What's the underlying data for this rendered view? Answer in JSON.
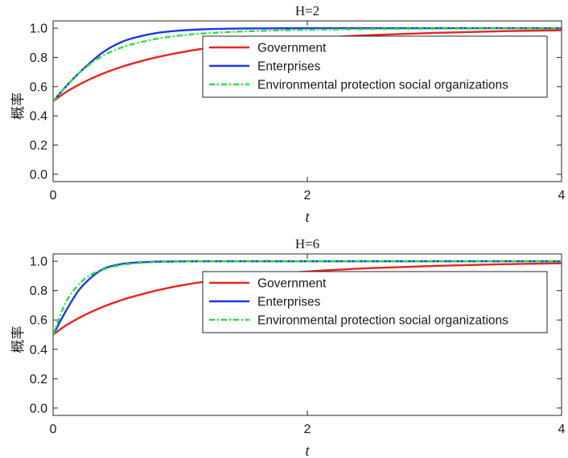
{
  "chart_data": [
    {
      "type": "line",
      "title": "H=2",
      "xlabel": "t",
      "ylabel": "概率",
      "xlim": [
        0,
        4
      ],
      "ylim": [
        -0.05,
        1.05
      ],
      "xticks": [
        "0",
        "2",
        "4"
      ],
      "yticks": [
        "0.0",
        "0.2",
        "0.4",
        "0.6",
        "0.8",
        "1.0"
      ],
      "legend_position": "top-right",
      "series": [
        {
          "name": "Government",
          "color": "#e8231f",
          "style": "solid",
          "x": [
            0,
            0.1,
            0.2,
            0.3,
            0.4,
            0.5,
            0.6,
            0.8,
            1.0,
            1.2,
            1.5,
            2.0,
            2.5,
            3.0,
            3.5,
            4.0
          ],
          "values": [
            0.5,
            0.562,
            0.612,
            0.655,
            0.692,
            0.724,
            0.752,
            0.798,
            0.834,
            0.862,
            0.895,
            0.93,
            0.953,
            0.968,
            0.979,
            0.986
          ]
        },
        {
          "name": "Enterprises",
          "color": "#1f35e8",
          "style": "solid",
          "x": [
            0,
            0.1,
            0.2,
            0.3,
            0.4,
            0.5,
            0.6,
            0.8,
            1.0,
            1.2,
            1.5,
            2.0,
            2.5,
            3.0,
            3.5,
            4.0
          ],
          "values": [
            0.5,
            0.6,
            0.69,
            0.77,
            0.84,
            0.89,
            0.925,
            0.965,
            0.984,
            0.993,
            0.998,
            1.0,
            1.0,
            1.0,
            1.0,
            1.0
          ]
        },
        {
          "name": "Environmental protection social organizations",
          "color": "#22e33a",
          "style": "dashdot",
          "x": [
            0,
            0.1,
            0.2,
            0.3,
            0.4,
            0.5,
            0.6,
            0.8,
            1.0,
            1.2,
            1.5,
            2.0,
            2.5,
            3.0,
            3.5,
            4.0
          ],
          "values": [
            0.5,
            0.6,
            0.69,
            0.76,
            0.815,
            0.855,
            0.885,
            0.925,
            0.95,
            0.965,
            0.978,
            0.989,
            0.994,
            0.997,
            0.998,
            0.999
          ]
        }
      ]
    },
    {
      "type": "line",
      "title": "H=6",
      "xlabel": "t",
      "ylabel": "概率",
      "xlim": [
        0,
        4
      ],
      "ylim": [
        -0.05,
        1.05
      ],
      "xticks": [
        "0",
        "2",
        "4"
      ],
      "yticks": [
        "0.0",
        "0.2",
        "0.4",
        "0.6",
        "0.8",
        "1.0"
      ],
      "legend_position": "top-right",
      "series": [
        {
          "name": "Government",
          "color": "#e8231f",
          "style": "solid",
          "x": [
            0,
            0.1,
            0.2,
            0.3,
            0.4,
            0.5,
            0.6,
            0.8,
            1.0,
            1.2,
            1.5,
            2.0,
            2.5,
            3.0,
            3.5,
            4.0
          ],
          "values": [
            0.5,
            0.562,
            0.612,
            0.655,
            0.692,
            0.724,
            0.752,
            0.798,
            0.834,
            0.862,
            0.895,
            0.93,
            0.953,
            0.968,
            0.979,
            0.986
          ]
        },
        {
          "name": "Enterprises",
          "color": "#1f35e8",
          "style": "solid",
          "x": [
            0,
            0.1,
            0.2,
            0.3,
            0.4,
            0.5,
            0.6,
            0.8,
            1.0,
            1.2,
            1.5,
            2.0,
            2.5,
            3.0,
            3.5,
            4.0
          ],
          "values": [
            0.5,
            0.66,
            0.8,
            0.89,
            0.95,
            0.975,
            0.988,
            0.997,
            0.999,
            1.0,
            1.0,
            1.0,
            1.0,
            1.0,
            1.0,
            1.0
          ]
        },
        {
          "name": "Environmental protection social organizations",
          "color": "#22e33a",
          "style": "dashdot",
          "x": [
            0,
            0.1,
            0.2,
            0.3,
            0.4,
            0.5,
            0.6,
            0.8,
            1.0,
            1.2,
            1.5,
            2.0,
            2.5,
            3.0,
            3.5,
            4.0
          ],
          "values": [
            0.5,
            0.72,
            0.84,
            0.91,
            0.945,
            0.968,
            0.982,
            0.994,
            0.998,
            0.999,
            1.0,
            1.0,
            1.0,
            1.0,
            1.0,
            1.0
          ]
        }
      ]
    }
  ]
}
